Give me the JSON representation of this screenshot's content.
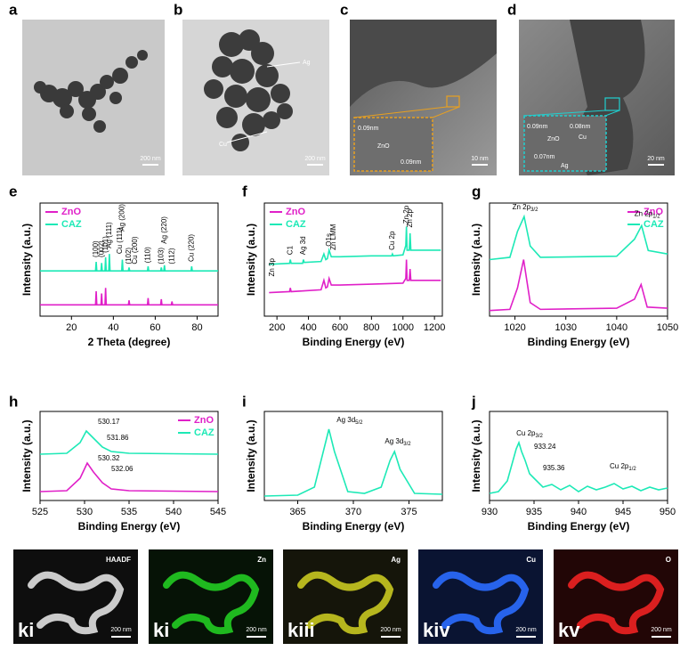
{
  "panel_letters": [
    "a",
    "b",
    "c",
    "d",
    "e",
    "f",
    "g",
    "h",
    "i",
    "j"
  ],
  "images": [
    {
      "scale_bar": "200 nm"
    },
    {
      "labels": [
        "Ag",
        "Cu"
      ],
      "scale_bar": "200 nm"
    },
    {
      "inset_labels": [
        "0.09nm",
        "ZnO",
        "0.09nm"
      ],
      "scale_bar": "10 nm"
    },
    {
      "inset_labels": [
        "0.09nm",
        "ZnO",
        "0.08nm",
        "Cu",
        "0.07nm",
        "Ag"
      ],
      "scale_bar": "20 nm"
    }
  ],
  "chart_data": [
    {
      "type": "line",
      "xlabel": "2 Theta (degree)",
      "ylabel": "Intensity (a.u.)",
      "xlim": [
        5,
        90
      ],
      "ylim": [
        0,
        100
      ],
      "xticks": [
        20,
        40,
        60,
        80
      ],
      "legend": "upper left",
      "series": [
        {
          "name": "ZnO",
          "color": "#e020c8",
          "x": [
            5,
            31.5,
            31.8,
            32.1,
            34.1,
            34.4,
            34.7,
            36,
            36.3,
            36.6,
            47.2,
            47.5,
            47.8,
            56.3,
            56.6,
            56.9,
            62.6,
            62.9,
            63.2,
            67.7,
            68,
            68.3,
            90
          ],
          "values": [
            10,
            10,
            22,
            10,
            10,
            20,
            10,
            10,
            25,
            10,
            10,
            14,
            10,
            10,
            16,
            10,
            10,
            15,
            10,
            10,
            13,
            10,
            10
          ]
        },
        {
          "name": "CAZ",
          "color": "#1de9b6",
          "x": [
            5,
            31.5,
            31.8,
            32.1,
            34.1,
            34.4,
            34.7,
            36,
            36.3,
            36.6,
            37.8,
            38.1,
            38.4,
            44,
            44.3,
            44.6,
            47.2,
            47.5,
            47.8,
            56.3,
            56.6,
            56.9,
            62.6,
            62.9,
            63.2,
            64.1,
            64.4,
            64.7,
            77.1,
            77.4,
            77.7,
            90
          ],
          "values": [
            40,
            40,
            48,
            40,
            40,
            47,
            40,
            40,
            52,
            40,
            40,
            55,
            40,
            40,
            50,
            40,
            40,
            43,
            40,
            40,
            44,
            40,
            40,
            43,
            40,
            40,
            45,
            40,
            40,
            44,
            40,
            40
          ]
        }
      ],
      "annotations": [
        "(100)",
        "(002)",
        "(101)",
        "Ag (111)",
        "Cu (111)",
        "Ag (200)",
        "(102)",
        "Cu (200)",
        "(110)",
        "(103)",
        "Ag (220)",
        "(112)",
        "Cu (220)"
      ]
    },
    {
      "type": "line",
      "xlabel": "Binding Energy (eV)",
      "ylabel": "Intensity (a.u.)",
      "xlim": [
        120,
        1250
      ],
      "ylim": [
        0,
        120
      ],
      "xticks": [
        200,
        400,
        600,
        800,
        1000,
        1200
      ],
      "legend": "upper left",
      "series": [
        {
          "name": "ZnO",
          "color": "#e020c8",
          "x": [
            150,
            280,
            285,
            290,
            480,
            498,
            510,
            520,
            531,
            545,
            600,
            800,
            1000,
            1018,
            1022,
            1026,
            1040,
            1045,
            1050,
            1240
          ],
          "values": [
            25,
            26,
            30,
            26,
            28,
            38,
            30,
            31,
            40,
            33,
            33,
            34,
            35,
            40,
            60,
            38,
            38,
            50,
            38,
            38
          ]
        },
        {
          "name": "CAZ",
          "color": "#1de9b6",
          "x": [
            150,
            280,
            285,
            290,
            363,
            368,
            373,
            480,
            498,
            510,
            520,
            531,
            545,
            600,
            800,
            928,
            933,
            938,
            1000,
            1018,
            1022,
            1026,
            1040,
            1045,
            1050,
            1240
          ],
          "values": [
            55,
            56,
            60,
            56,
            56,
            60,
            57,
            58,
            66,
            60,
            61,
            70,
            63,
            63,
            64,
            64,
            66,
            64,
            65,
            75,
            95,
            70,
            70,
            88,
            70,
            70
          ]
        }
      ],
      "annotations": [
        "Zn 3p",
        "C1",
        "Ag 3d",
        "O1s",
        "Zn LMM",
        "Cu 2p",
        "Zn 2p",
        "Zn 2p"
      ]
    },
    {
      "type": "line",
      "xlabel": "Binding Energy (eV)",
      "ylabel": "Intensity (a.u.)",
      "xlim": [
        1015,
        1050
      ],
      "ylim": [
        0,
        100
      ],
      "xticks": [
        1020,
        1030,
        1040,
        1050
      ],
      "legend": "upper right",
      "series": [
        {
          "name": "ZnO",
          "color": "#e020c8",
          "x": [
            1015,
            1019,
            1020.5,
            1021.7,
            1023,
            1025,
            1040,
            1043.5,
            1044.8,
            1046,
            1050
          ],
          "values": [
            5,
            6,
            25,
            50,
            12,
            6,
            7,
            15,
            28,
            8,
            7
          ]
        },
        {
          "name": "CAZ",
          "color": "#1de9b6",
          "x": [
            1015,
            1019,
            1020.5,
            1021.8,
            1023,
            1025,
            1040,
            1043.5,
            1044.9,
            1046.2,
            1050
          ],
          "values": [
            50,
            52,
            75,
            88,
            62,
            52,
            53,
            68,
            80,
            58,
            55
          ]
        }
      ],
      "annotations": [
        {
          "text": "Zn 2p",
          "sub": "3/2"
        },
        {
          "text": "Zn 2p",
          "sub": "1/2"
        }
      ]
    },
    {
      "type": "line",
      "xlabel": "Binding Energy (eV)",
      "ylabel": "Intensity (a.u.)",
      "xlim": [
        525,
        545
      ],
      "ylim": [
        0,
        100
      ],
      "xticks": [
        525,
        530,
        535,
        540,
        545
      ],
      "legend": "upper right",
      "series": [
        {
          "name": "ZnO",
          "color": "#e020c8",
          "x": [
            525,
            528,
            529.5,
            530.3,
            531,
            532,
            533,
            535,
            545
          ],
          "values": [
            10,
            11,
            25,
            42,
            32,
            20,
            13,
            11,
            10
          ]
        },
        {
          "name": "CAZ",
          "color": "#1de9b6",
          "x": [
            525,
            528,
            529.5,
            530.2,
            531,
            532,
            533,
            535,
            545
          ],
          "values": [
            52,
            53,
            65,
            78,
            70,
            60,
            55,
            53,
            52
          ]
        }
      ],
      "annotations": [
        "530.17",
        "531.86",
        "530.32",
        "532.06"
      ]
    },
    {
      "type": "line",
      "xlabel": "Binding Energy (eV)",
      "ylabel": "Intensity (a.u.)",
      "xlim": [
        362,
        378
      ],
      "ylim": [
        0,
        100
      ],
      "xticks": [
        365,
        370,
        375
      ],
      "series": [
        {
          "color": "#1de9b6",
          "x": [
            362,
            365,
            366.5,
            367.4,
            367.8,
            368.3,
            369.5,
            371,
            372.5,
            373.3,
            373.7,
            374.2,
            375.5,
            378
          ],
          "values": [
            5,
            6,
            15,
            60,
            80,
            55,
            10,
            8,
            15,
            45,
            55,
            35,
            8,
            7
          ]
        }
      ],
      "annotations": [
        {
          "text": "Ag 3d",
          "sub": "5/2"
        },
        {
          "text": "Ag 3d",
          "sub": "3/2"
        }
      ]
    },
    {
      "type": "line",
      "xlabel": "Binding Energy (eV)",
      "ylabel": "Intensity (a.u.)",
      "xlim": [
        930,
        950
      ],
      "ylim": [
        0,
        100
      ],
      "xticks": [
        930,
        935,
        940,
        945,
        950
      ],
      "series": [
        {
          "color": "#1de9b6",
          "x": [
            930,
            931,
            932,
            932.5,
            933,
            933.3,
            933.6,
            934,
            934.5,
            935,
            936,
            937,
            938,
            939,
            940,
            941,
            942,
            943,
            944,
            945,
            946,
            947,
            948,
            949,
            950
          ],
          "values": [
            8,
            10,
            22,
            40,
            58,
            65,
            55,
            45,
            30,
            25,
            15,
            18,
            12,
            17,
            10,
            16,
            12,
            15,
            19,
            13,
            16,
            11,
            15,
            12,
            14
          ]
        }
      ],
      "annotations": [
        {
          "text": "Cu 2p",
          "sub": "3/2"
        },
        "933.24",
        "935.36",
        {
          "text": "Cu 2p",
          "sub": "1/2"
        }
      ]
    }
  ],
  "maps": [
    {
      "element": "HAADF",
      "label": "ki",
      "scale_bar": "200 nm"
    },
    {
      "element": "Zn",
      "label": "ki",
      "scale_bar": "200 nm"
    },
    {
      "element": "Ag",
      "label": "kiii",
      "scale_bar": "200 nm"
    },
    {
      "element": "Cu",
      "label": "kiv",
      "scale_bar": "200 nm"
    },
    {
      "element": "O",
      "label": "kv",
      "scale_bar": "200 nm"
    }
  ]
}
